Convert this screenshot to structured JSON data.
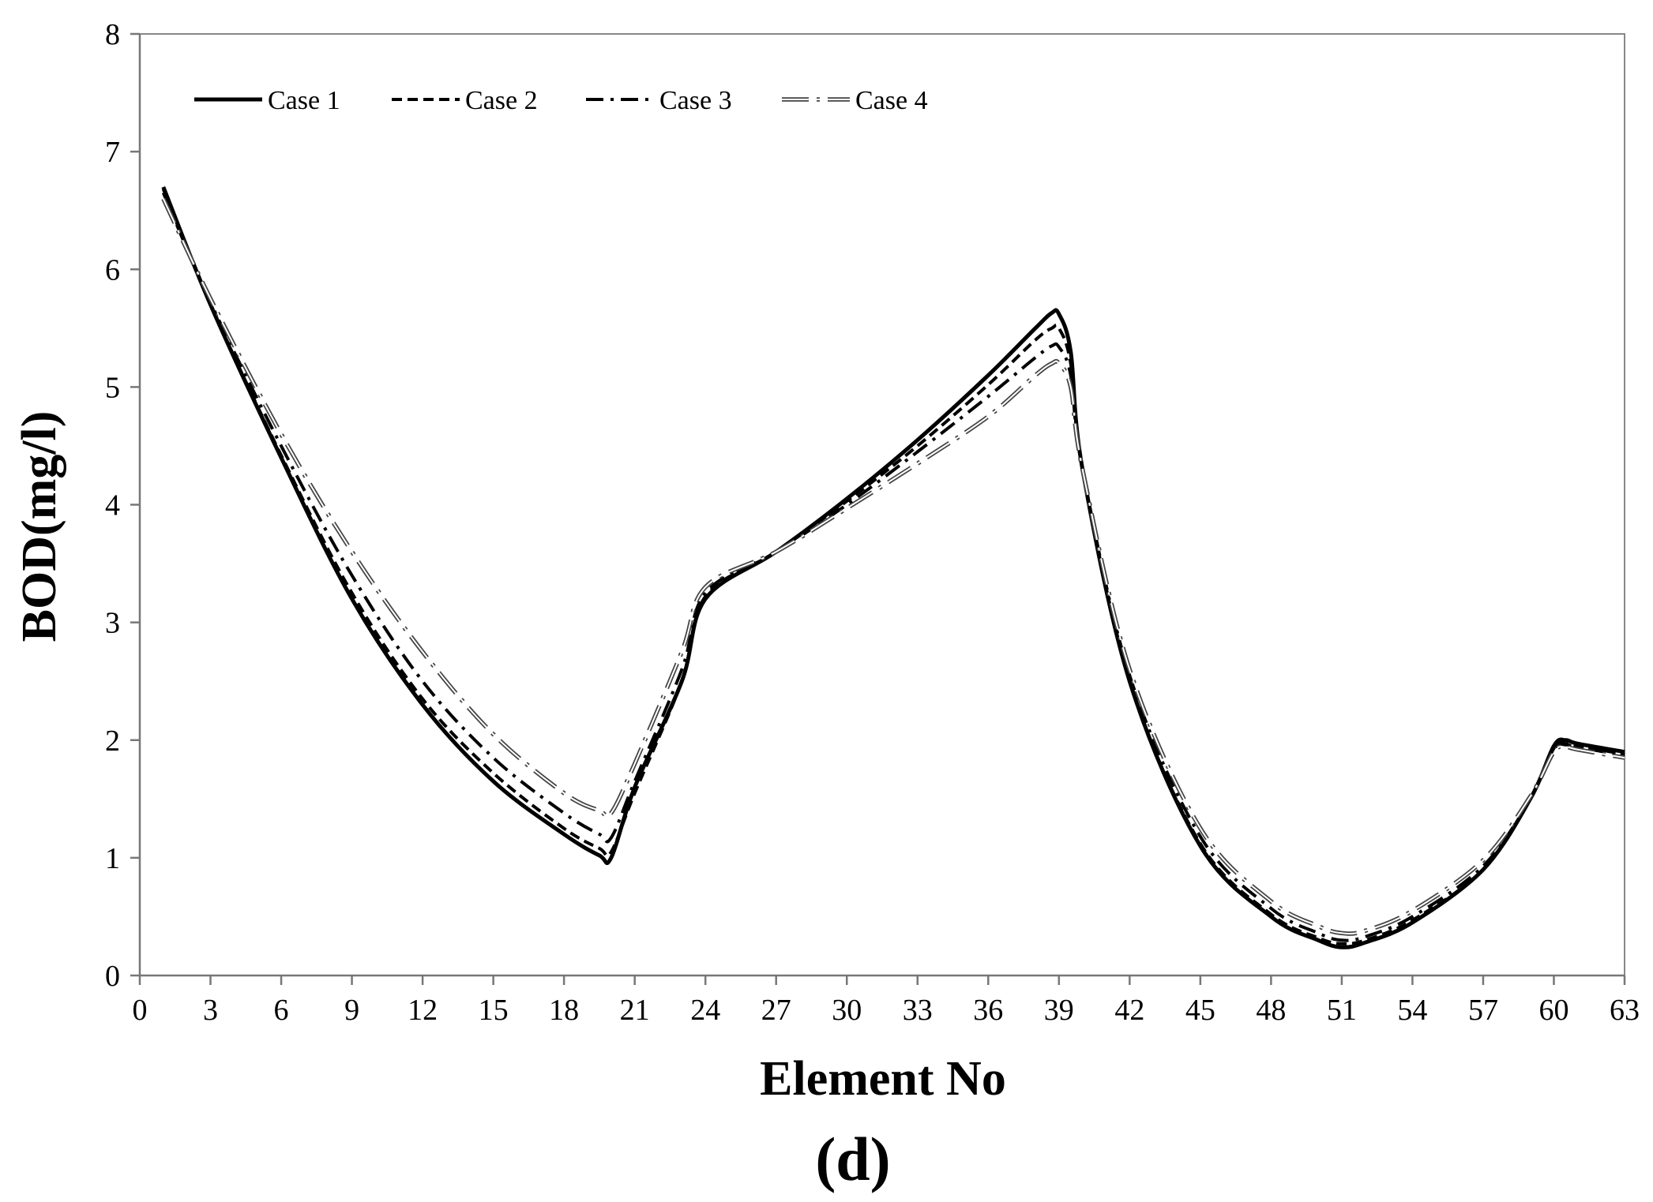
{
  "chart_data": {
    "type": "line",
    "xlabel": "Element No",
    "ylabel": "BOD(mg/l)",
    "panel_label": "(d)",
    "xlim": [
      0,
      63
    ],
    "ylim": [
      0,
      8
    ],
    "xticks": [
      "0",
      "3",
      "6",
      "9",
      "12",
      "15",
      "18",
      "21",
      "24",
      "27",
      "30",
      "33",
      "36",
      "39",
      "42",
      "45",
      "48",
      "51",
      "54",
      "57",
      "60",
      "63"
    ],
    "yticks": [
      "0",
      "1",
      "2",
      "3",
      "4",
      "5",
      "6",
      "7",
      "8"
    ],
    "grid": false,
    "legend_position": "top-left",
    "series": [
      {
        "name": "Case 1",
        "style": "solid",
        "color": "#000000",
        "x": [
          1,
          3,
          6,
          9,
          12,
          15,
          18,
          19.5,
          20,
          21,
          23,
          24,
          27,
          30,
          33,
          36,
          38,
          38.7,
          39,
          39.5,
          40,
          42,
          45,
          48,
          50,
          51,
          52,
          54,
          57,
          59,
          60,
          60.5,
          61,
          63
        ],
        "y": [
          6.7,
          5.7,
          4.4,
          3.2,
          2.3,
          1.65,
          1.2,
          1.02,
          1.0,
          1.6,
          2.5,
          3.2,
          3.6,
          4.05,
          4.55,
          5.1,
          5.5,
          5.63,
          5.62,
          5.3,
          4.3,
          2.5,
          1.1,
          0.5,
          0.3,
          0.24,
          0.28,
          0.45,
          0.9,
          1.5,
          1.95,
          2.0,
          1.97,
          1.9
        ]
      },
      {
        "name": "Case 2",
        "style": "dashed",
        "color": "#000000",
        "x": [
          1,
          3,
          6,
          9,
          12,
          15,
          18,
          19.5,
          20,
          21,
          23,
          24,
          27,
          30,
          33,
          36,
          38,
          38.7,
          39,
          39.5,
          40,
          42,
          45,
          48,
          50,
          51,
          52,
          54,
          57,
          59,
          60,
          60.5,
          61,
          63
        ],
        "y": [
          6.68,
          5.7,
          4.42,
          3.25,
          2.35,
          1.72,
          1.25,
          1.08,
          1.05,
          1.55,
          2.5,
          3.22,
          3.6,
          4.03,
          4.5,
          5.02,
          5.4,
          5.5,
          5.5,
          5.2,
          4.3,
          2.5,
          1.12,
          0.52,
          0.32,
          0.27,
          0.3,
          0.47,
          0.9,
          1.5,
          1.93,
          1.97,
          1.95,
          1.88
        ]
      },
      {
        "name": "Case 3",
        "style": "dashdot",
        "color": "#000000",
        "x": [
          1,
          3,
          6,
          9,
          12,
          15,
          18,
          19.5,
          20,
          21,
          23,
          24,
          27,
          30,
          33,
          36,
          38,
          38.7,
          39,
          39.5,
          40,
          42,
          45,
          48,
          50,
          51,
          52,
          54,
          57,
          59,
          60,
          60.5,
          61,
          63
        ],
        "y": [
          6.65,
          5.72,
          4.5,
          3.4,
          2.5,
          1.85,
          1.38,
          1.2,
          1.17,
          1.65,
          2.6,
          3.25,
          3.6,
          4.0,
          4.45,
          4.92,
          5.25,
          5.35,
          5.34,
          5.1,
          4.3,
          2.55,
          1.18,
          0.57,
          0.36,
          0.3,
          0.33,
          0.5,
          0.93,
          1.5,
          1.92,
          1.96,
          1.94,
          1.87
        ]
      },
      {
        "name": "Case 4",
        "style": "double-dashdot",
        "color": "#000000",
        "x": [
          1,
          3,
          6,
          9,
          12,
          15,
          18,
          19.5,
          20,
          21,
          23,
          24,
          27,
          30,
          33,
          36,
          38,
          38.7,
          39,
          39.5,
          40,
          42,
          45,
          48,
          50,
          51,
          52,
          54,
          57,
          59,
          60,
          60.5,
          61,
          63
        ],
        "y": [
          6.6,
          5.75,
          4.6,
          3.6,
          2.75,
          2.05,
          1.55,
          1.4,
          1.38,
          1.8,
          2.75,
          3.3,
          3.6,
          3.97,
          4.35,
          4.75,
          5.1,
          5.2,
          5.2,
          5.0,
          4.3,
          2.6,
          1.25,
          0.63,
          0.42,
          0.36,
          0.38,
          0.55,
          0.98,
          1.52,
          1.9,
          1.94,
          1.92,
          1.85
        ]
      }
    ]
  }
}
